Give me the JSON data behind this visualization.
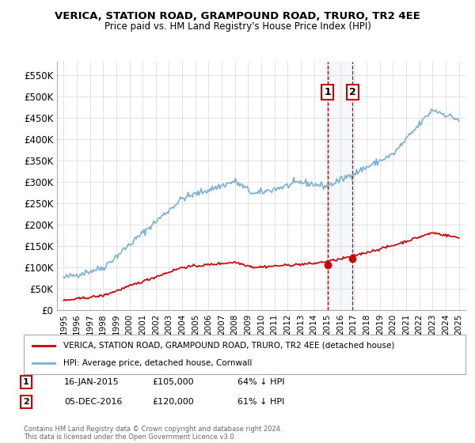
{
  "title": "VERICA, STATION ROAD, GRAMPOUND ROAD, TRURO, TR2 4EE",
  "subtitle": "Price paid vs. HM Land Registry's House Price Index (HPI)",
  "ylim": [
    0,
    580000
  ],
  "yticks": [
    0,
    50000,
    100000,
    150000,
    200000,
    250000,
    300000,
    350000,
    400000,
    450000,
    500000,
    550000
  ],
  "hpi_color": "#7ab0d4",
  "price_color": "#cc0000",
  "transaction1_date": "16-JAN-2015",
  "transaction1_price": 105000,
  "transaction1_label": "64% ↓ HPI",
  "transaction2_date": "05-DEC-2016",
  "transaction2_price": 120000,
  "transaction2_label": "61% ↓ HPI",
  "legend_property": "VERICA, STATION ROAD, GRAMPOUND ROAD, TRURO, TR2 4EE (detached house)",
  "legend_hpi": "HPI: Average price, detached house, Cornwall",
  "footnote": "Contains HM Land Registry data © Crown copyright and database right 2024.\nThis data is licensed under the Open Government Licence v3.0.",
  "grid_color": "#dddddd",
  "background_color": "#ffffff",
  "highlight_color": "#ddeeff",
  "t1_year": 2015.04,
  "t2_year": 2016.92
}
